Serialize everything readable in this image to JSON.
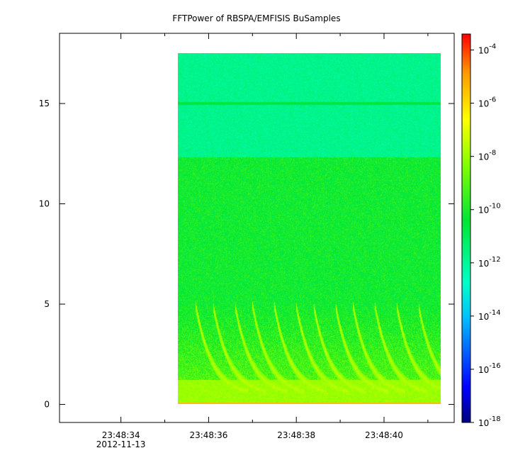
{
  "chart_data": {
    "type": "heatmap",
    "title": "FFTPower of RBSPA/EMFISIS  BuSamples",
    "xlabel": "",
    "ylabel": "",
    "x_ticks": [
      {
        "label": "23:48:34",
        "sublabel": "2012-11-13",
        "time_s": 34
      },
      {
        "label": "23:48:36",
        "sublabel": "",
        "time_s": 36
      },
      {
        "label": "23:48:38",
        "sublabel": "",
        "time_s": 38
      },
      {
        "label": "23:48:40",
        "sublabel": "",
        "time_s": 40
      }
    ],
    "x_minor_ticks_s": [
      35,
      37,
      39,
      41
    ],
    "xlim_s": [
      32.6,
      41.6
    ],
    "data_time_range_s": [
      35.3,
      41.3
    ],
    "y_ticks": [
      {
        "label": "0",
        "value": 0
      },
      {
        "label": "5",
        "value": 5
      },
      {
        "label": "10",
        "value": 10
      },
      {
        "label": "15",
        "value": 15
      }
    ],
    "ylim": [
      -0.9,
      18.5
    ],
    "data_frequency_range": [
      0,
      17.5
    ],
    "colorbar": {
      "scale": "log",
      "range_exponent": [
        -18,
        -3.4
      ],
      "ticks": [
        {
          "base": "10",
          "exp": "-4",
          "value_exp": -4
        },
        {
          "base": "10",
          "exp": "-6",
          "value_exp": -6
        },
        {
          "base": "10",
          "exp": "-8",
          "value_exp": -8
        },
        {
          "base": "10",
          "exp": "-10",
          "value_exp": -10
        },
        {
          "base": "10",
          "exp": "-12",
          "value_exp": -12
        },
        {
          "base": "10",
          "exp": "-14",
          "value_exp": -14
        },
        {
          "base": "10",
          "exp": "-16",
          "value_exp": -16
        },
        {
          "base": "10",
          "exp": "-18",
          "value_exp": -18
        }
      ],
      "colormap": [
        "#000080",
        "#0000ff",
        "#00ffff",
        "#00ff00",
        "#ffff00",
        "#ff0000"
      ]
    },
    "features": {
      "upper_band_level_exp": -11.8,
      "upper_band_range": [
        12.3,
        17.5
      ],
      "main_band_level_exp": -10.2,
      "main_band_range": [
        0,
        12.3
      ],
      "line_15": -10.6,
      "low_freq_level_exp": -8.0,
      "baseline_level_exp": -5.5
    },
    "grid": false
  }
}
